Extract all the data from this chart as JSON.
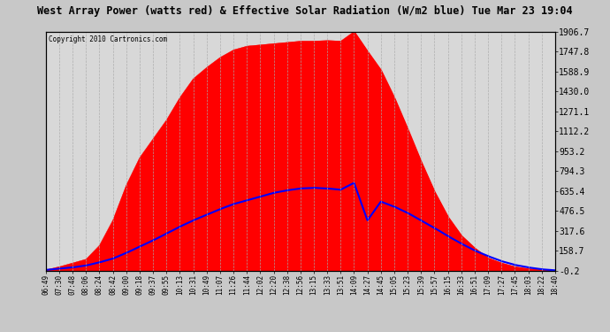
{
  "title": "West Array Power (watts red) & Effective Solar Radiation (W/m2 blue) Tue Mar 23 19:04",
  "copyright": "Copyright 2010 Cartronics.com",
  "bg_color": "#c8c8c8",
  "plot_bg_color": "#d8d8d8",
  "title_color": "#000000",
  "grid_color": "#aaaaaa",
  "y_min": -0.2,
  "y_max": 1906.7,
  "yticks": [
    1906.7,
    1747.8,
    1588.9,
    1430.0,
    1271.1,
    1112.2,
    953.2,
    794.3,
    635.4,
    476.5,
    317.6,
    158.7,
    -0.2
  ],
  "x_labels": [
    "06:49",
    "07:30",
    "07:48",
    "08:06",
    "08:24",
    "08:42",
    "09:00",
    "09:18",
    "09:37",
    "09:55",
    "10:13",
    "10:31",
    "10:49",
    "11:07",
    "11:26",
    "11:44",
    "12:02",
    "12:20",
    "12:38",
    "12:56",
    "13:15",
    "13:33",
    "13:51",
    "14:09",
    "14:27",
    "14:45",
    "15:05",
    "15:23",
    "15:39",
    "15:57",
    "16:15",
    "16:33",
    "16:51",
    "17:09",
    "17:27",
    "17:45",
    "18:03",
    "18:22",
    "18:40"
  ],
  "red_color": "#ff0000",
  "blue_color": "#0000ff",
  "red_values": [
    5,
    30,
    60,
    90,
    200,
    400,
    680,
    900,
    1050,
    1200,
    1380,
    1530,
    1620,
    1700,
    1760,
    1790,
    1800,
    1810,
    1820,
    1830,
    1830,
    1835,
    1830,
    1906.7,
    1750,
    1600,
    1380,
    1130,
    870,
    630,
    430,
    280,
    180,
    100,
    60,
    30,
    15,
    5,
    0
  ],
  "blue_values": [
    5,
    15,
    25,
    40,
    65,
    95,
    140,
    190,
    240,
    295,
    350,
    400,
    445,
    490,
    530,
    560,
    590,
    620,
    640,
    655,
    660,
    655,
    645,
    700,
    400,
    550,
    510,
    460,
    400,
    340,
    275,
    215,
    160,
    115,
    75,
    45,
    25,
    10,
    2
  ]
}
